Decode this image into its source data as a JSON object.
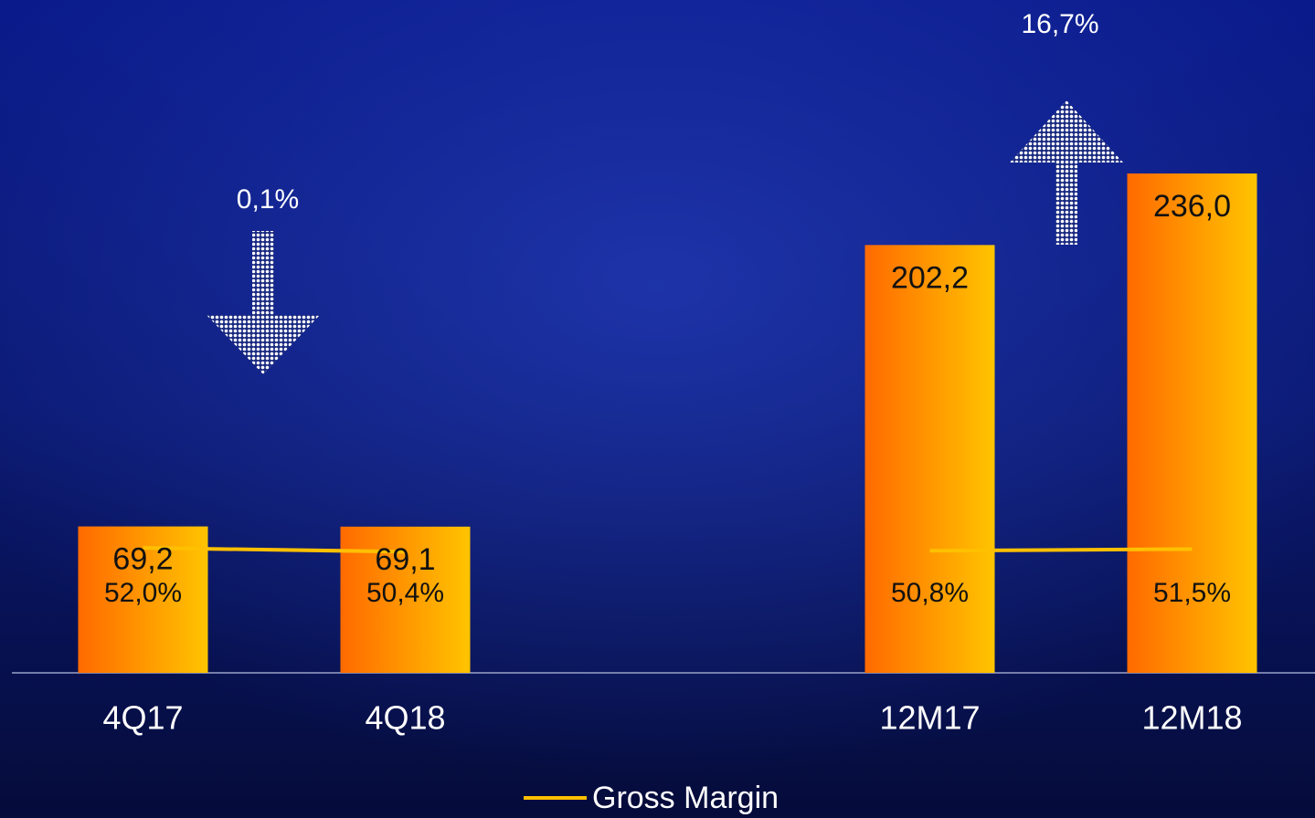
{
  "chart_data": {
    "type": "bar",
    "categories": [
      "4Q17",
      "4Q18",
      null,
      "12M17",
      "12M18"
    ],
    "values": [
      69.2,
      69.1,
      null,
      202.2,
      236.0
    ],
    "value_labels": [
      "69,2",
      "69,1",
      null,
      "202,2",
      "236,0"
    ],
    "color": "#ff6a00",
    "ylim": [
      0,
      318
    ],
    "y2lim": [
      0,
      280
    ],
    "series": [
      {
        "name": "Gross Margin",
        "color": "#ffc000",
        "axis": "y2",
        "values": [
          52.0,
          50.4,
          null,
          50.8,
          51.5
        ],
        "value_labels": [
          "52,0%",
          "50,4%",
          null,
          "50,8%",
          "51,5%"
        ]
      }
    ],
    "annotations": [
      "0,1%",
      "16,7%"
    ],
    "legend": "bottom"
  }
}
